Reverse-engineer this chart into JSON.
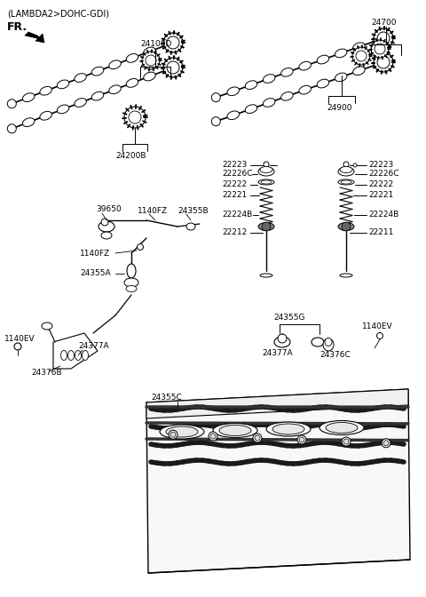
{
  "bg_color": "#ffffff",
  "labels": {
    "header": "(LAMBDA2>DOHC-GDI)",
    "fr": "FR.",
    "24100D": "24100D",
    "24200B": "24200B",
    "24700": "24700",
    "24900": "24900",
    "39650": "39650",
    "1140FZ_a": "1140FZ",
    "1140FZ_b": "1140FZ",
    "24355B": "24355B",
    "24355A": "24355A",
    "22223_L": "22223",
    "22226C_L": "22226C",
    "22222_L": "22222",
    "22221_L": "22221",
    "22224B_L": "22224B",
    "22212": "22212",
    "22223_R": "22223",
    "22226C_R": "22226C",
    "22222_R": "22222",
    "22221_R": "22221",
    "22224B_R": "22224B",
    "22211": "22211",
    "24355G": "24355G",
    "1140EV_R": "1140EV",
    "24377A_R": "24377A",
    "24376C": "24376C",
    "1140EV_L": "1140EV",
    "24377A_L": "24377A",
    "24376B": "24376B",
    "24355C": "24355C"
  }
}
